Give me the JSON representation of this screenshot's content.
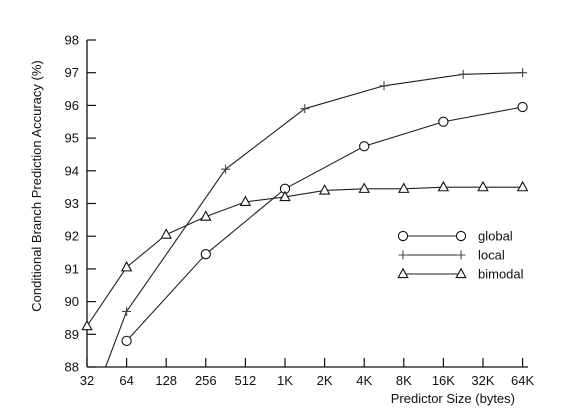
{
  "chart_data": {
    "type": "line",
    "xlabel": "Predictor Size (bytes)",
    "ylabel": "Conditional Branch Prediction Accuracy (%)",
    "x_ticks": [
      "32",
      "64",
      "128",
      "256",
      "512",
      "1K",
      "2K",
      "4K",
      "8K",
      "16K",
      "32K",
      "64K"
    ],
    "x_scale": "log2",
    "x_range": [
      32,
      65536
    ],
    "y_ticks": [
      "88",
      "89",
      "90",
      "91",
      "92",
      "93",
      "94",
      "95",
      "96",
      "97",
      "98"
    ],
    "ylim": [
      88,
      98
    ],
    "grid": false,
    "legend_position": "right-middle",
    "series": [
      {
        "name": "global",
        "marker": "circle",
        "x": [
          64,
          256,
          1024,
          4096,
          16384,
          65536
        ],
        "y": [
          88.8,
          91.45,
          93.45,
          94.75,
          95.5,
          95.95
        ]
      },
      {
        "name": "local",
        "marker": "plus",
        "x": [
          32,
          64,
          362,
          1448,
          5793,
          23170,
          65536
        ],
        "y": [
          86.5,
          89.7,
          94.05,
          95.9,
          96.6,
          96.95,
          97.0
        ]
      },
      {
        "name": "bimodal",
        "marker": "triangle",
        "x": [
          32,
          64,
          128,
          256,
          512,
          1024,
          2048,
          4096,
          8192,
          16384,
          32768,
          65536
        ],
        "y": [
          89.25,
          91.05,
          92.05,
          92.6,
          93.05,
          93.2,
          93.4,
          93.45,
          93.45,
          93.5,
          93.5,
          93.5
        ]
      }
    ]
  }
}
